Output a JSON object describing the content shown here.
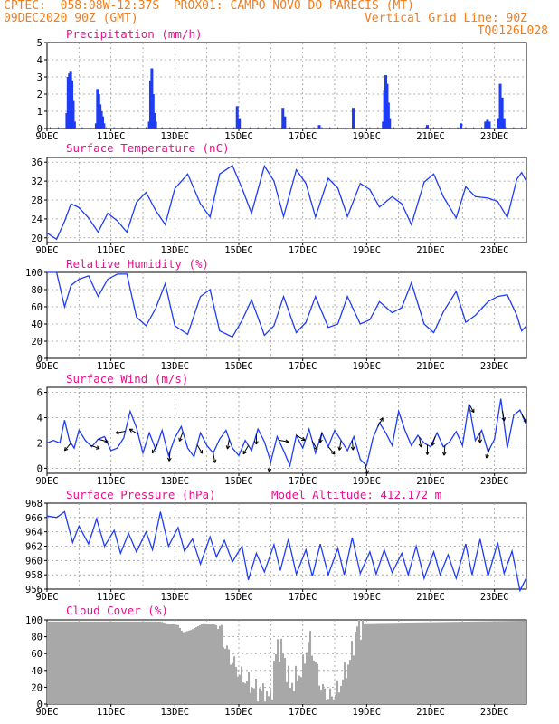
{
  "header": {
    "line1_left": "CPTEC:  058:08W-12:37S  PROX01: CAMPO NOVO DO PARECIS (MT)",
    "line2_left": "09DEC2020 90Z (GMT)",
    "line2_right": "Vertical Grid Line: 90Z",
    "line3_right": "TQ0126L028"
  },
  "x_axis": {
    "days": [
      9,
      24
    ],
    "tick_labels": [
      "9DEC",
      "11DEC",
      "13DEC",
      "15DEC",
      "17DEC",
      "19DEC",
      "21DEC",
      "23DEC"
    ],
    "tick_days": [
      9,
      11,
      13,
      15,
      17,
      19,
      21,
      23
    ]
  },
  "colors": {
    "line": "#1f3cf5",
    "bar": "#1f3cf5",
    "cloud": "#a8a8a8",
    "title": "#e8128c",
    "header": "#f07d1e",
    "wind_arrow": "#000000"
  },
  "chart_data": [
    {
      "type": "bar",
      "title": "Precipitation (mm/h)",
      "ylim": [
        0,
        5
      ],
      "yticks": [
        0,
        1,
        2,
        3,
        4,
        5
      ],
      "grid": true,
      "x_unit": "day of December 2020",
      "bars": [
        [
          9.62,
          0.9
        ],
        [
          9.66,
          3.0
        ],
        [
          9.7,
          3.2
        ],
        [
          9.74,
          3.3
        ],
        [
          9.78,
          2.8
        ],
        [
          9.82,
          1.6
        ],
        [
          9.86,
          0.4
        ],
        [
          10.54,
          0.3
        ],
        [
          10.58,
          2.3
        ],
        [
          10.62,
          2.0
        ],
        [
          10.66,
          1.4
        ],
        [
          10.7,
          1.0
        ],
        [
          10.74,
          0.7
        ],
        [
          10.78,
          0.3
        ],
        [
          12.2,
          0.4
        ],
        [
          12.24,
          2.8
        ],
        [
          12.28,
          3.5
        ],
        [
          12.32,
          2.0
        ],
        [
          12.36,
          0.9
        ],
        [
          12.4,
          0.4
        ],
        [
          14.95,
          1.3
        ],
        [
          15.02,
          0.6
        ],
        [
          16.38,
          1.2
        ],
        [
          16.44,
          0.7
        ],
        [
          17.52,
          0.2
        ],
        [
          18.58,
          1.2
        ],
        [
          19.52,
          0.4
        ],
        [
          19.56,
          2.2
        ],
        [
          19.6,
          3.1
        ],
        [
          19.64,
          2.6
        ],
        [
          19.68,
          1.5
        ],
        [
          19.72,
          0.6
        ],
        [
          20.9,
          0.2
        ],
        [
          21.95,
          0.3
        ],
        [
          22.72,
          0.4
        ],
        [
          22.78,
          0.5
        ],
        [
          22.84,
          0.4
        ],
        [
          23.12,
          0.6
        ],
        [
          23.18,
          2.6
        ],
        [
          23.24,
          1.8
        ],
        [
          23.3,
          0.6
        ]
      ]
    },
    {
      "type": "line",
      "title": "Surface Temperature (nC)",
      "ylim": [
        19,
        37
      ],
      "yticks": [
        20,
        24,
        28,
        32,
        36
      ],
      "grid": true,
      "x": [
        9.0,
        9.3,
        9.55,
        9.75,
        10.0,
        10.3,
        10.6,
        10.9,
        11.2,
        11.5,
        11.8,
        12.1,
        12.4,
        12.7,
        13.0,
        13.4,
        13.8,
        14.1,
        14.4,
        14.8,
        15.1,
        15.4,
        15.8,
        16.1,
        16.4,
        16.8,
        17.1,
        17.4,
        17.8,
        18.1,
        18.4,
        18.8,
        19.1,
        19.4,
        19.8,
        20.1,
        20.4,
        20.8,
        21.1,
        21.4,
        21.8,
        22.1,
        22.4,
        22.8,
        23.1,
        23.4,
        23.7,
        23.85,
        24.0
      ],
      "y": [
        21,
        19.7,
        23.5,
        27.2,
        26.4,
        24.2,
        21.2,
        25.2,
        23.6,
        21.2,
        27.5,
        29.6,
        25.8,
        22.8,
        30.4,
        33.5,
        27.2,
        24.4,
        33.5,
        35.3,
        30.5,
        25.2,
        35.2,
        32.0,
        24.5,
        34.4,
        31.5,
        24.4,
        32.6,
        30.5,
        24.5,
        31.5,
        30.2,
        26.5,
        28.7,
        27.2,
        22.8,
        31.8,
        33.5,
        28.7,
        24.2,
        30.8,
        28.7,
        28.4,
        27.7,
        24.3,
        32.4,
        33.8,
        31.9
      ]
    },
    {
      "type": "line",
      "title": "Relative Humidity (%)",
      "ylim": [
        0,
        100
      ],
      "yticks": [
        0,
        20,
        40,
        60,
        80,
        100
      ],
      "grid": true,
      "x": [
        9.0,
        9.3,
        9.55,
        9.75,
        10.0,
        10.3,
        10.6,
        10.9,
        11.2,
        11.5,
        11.8,
        12.1,
        12.4,
        12.7,
        13.0,
        13.4,
        13.8,
        14.1,
        14.4,
        14.8,
        15.1,
        15.4,
        15.8,
        16.1,
        16.4,
        16.8,
        17.1,
        17.4,
        17.8,
        18.1,
        18.4,
        18.8,
        19.1,
        19.4,
        19.8,
        20.1,
        20.4,
        20.8,
        21.1,
        21.4,
        21.8,
        22.1,
        22.4,
        22.8,
        23.1,
        23.4,
        23.7,
        23.85,
        24.0
      ],
      "y": [
        100,
        100,
        60,
        85,
        92,
        96,
        72,
        92,
        98,
        98,
        48,
        38,
        58,
        87,
        38,
        28,
        72,
        80,
        32,
        25,
        44,
        68,
        27,
        38,
        72,
        30,
        42,
        72,
        36,
        40,
        72,
        40,
        45,
        66,
        53,
        59,
        88,
        40,
        30,
        54,
        78,
        42,
        50,
        66,
        72,
        74,
        50,
        32,
        38
      ]
    },
    {
      "type": "line",
      "title": "Surface Wind (m/s)",
      "ylim": [
        -0.4,
        6.4
      ],
      "yticks": [
        0,
        2,
        4,
        6
      ],
      "grid": true,
      "x": [
        9.0,
        9.2,
        9.4,
        9.55,
        9.7,
        9.85,
        10.0,
        10.2,
        10.4,
        10.6,
        10.8,
        11.0,
        11.2,
        11.4,
        11.6,
        11.8,
        12.0,
        12.2,
        12.4,
        12.6,
        12.8,
        13.0,
        13.2,
        13.4,
        13.6,
        13.8,
        14.0,
        14.2,
        14.4,
        14.6,
        14.8,
        15.0,
        15.2,
        15.4,
        15.6,
        15.8,
        16.0,
        16.2,
        16.4,
        16.6,
        16.8,
        17.0,
        17.2,
        17.4,
        17.6,
        17.8,
        18.0,
        18.2,
        18.4,
        18.6,
        18.8,
        19.0,
        19.2,
        19.4,
        19.6,
        19.8,
        20.0,
        20.2,
        20.4,
        20.6,
        20.8,
        21.0,
        21.2,
        21.4,
        21.6,
        21.8,
        22.0,
        22.2,
        22.4,
        22.6,
        22.8,
        23.0,
        23.2,
        23.4,
        23.6,
        23.8,
        24.0
      ],
      "y": [
        2.0,
        2.2,
        2.0,
        3.8,
        2.2,
        1.6,
        3.0,
        2.2,
        1.7,
        2.3,
        2.5,
        1.4,
        1.6,
        2.4,
        4.5,
        3.2,
        1.2,
        2.8,
        1.5,
        3.0,
        1.0,
        2.4,
        3.3,
        1.6,
        0.9,
        2.8,
        1.8,
        1.2,
        2.3,
        3.0,
        1.6,
        1.0,
        2.2,
        1.4,
        3.1,
        2.1,
        0.5,
        2.5,
        1.4,
        0.2,
        2.6,
        1.6,
        3.1,
        1.2,
        2.8,
        1.7,
        3.0,
        2.2,
        1.4,
        2.5,
        0.7,
        0.2,
        2.4,
        3.6,
        2.8,
        1.8,
        4.5,
        3.0,
        1.8,
        2.6,
        2.0,
        1.7,
        2.8,
        1.7,
        2.1,
        2.9,
        1.8,
        5.1,
        2.2,
        3.0,
        1.3,
        2.3,
        5.5,
        1.6,
        4.2,
        4.6,
        3.4
      ],
      "arrows": [
        [
          9.75,
          -130
        ],
        [
          10.35,
          -20
        ],
        [
          10.6,
          -15
        ],
        [
          11.45,
          -170
        ],
        [
          11.85,
          150
        ],
        [
          12.45,
          -120
        ],
        [
          12.85,
          -95
        ],
        [
          13.25,
          -110
        ],
        [
          13.7,
          -60
        ],
        [
          14.2,
          -80
        ],
        [
          14.7,
          -100
        ],
        [
          15.3,
          -120
        ],
        [
          15.55,
          -90
        ],
        [
          16.0,
          -100
        ],
        [
          16.25,
          -10
        ],
        [
          16.8,
          -30
        ],
        [
          17.3,
          -60
        ],
        [
          17.6,
          -100
        ],
        [
          17.8,
          -50
        ],
        [
          18.2,
          -100
        ],
        [
          18.55,
          -85
        ],
        [
          18.95,
          -75
        ],
        [
          19.35,
          60
        ],
        [
          20.65,
          -80
        ],
        [
          20.9,
          -90
        ],
        [
          21.15,
          -110
        ],
        [
          21.45,
          -95
        ],
        [
          22.2,
          -60
        ],
        [
          22.55,
          -90
        ],
        [
          22.85,
          -110
        ],
        [
          23.25,
          -80
        ],
        [
          23.85,
          -60
        ]
      ]
    },
    {
      "type": "line",
      "title": "Surface Pressure (hPa)",
      "subtitle": "Model Altitude: 412.172  m",
      "ylim": [
        956,
        968
      ],
      "yticks": [
        956,
        958,
        960,
        962,
        964,
        966,
        968
      ],
      "grid": true,
      "x": [
        9.0,
        9.3,
        9.55,
        9.8,
        10.0,
        10.3,
        10.55,
        10.8,
        11.1,
        11.3,
        11.55,
        11.8,
        12.1,
        12.3,
        12.55,
        12.8,
        13.1,
        13.3,
        13.55,
        13.8,
        14.1,
        14.3,
        14.55,
        14.8,
        15.1,
        15.3,
        15.55,
        15.8,
        16.1,
        16.3,
        16.55,
        16.8,
        17.1,
        17.3,
        17.55,
        17.8,
        18.1,
        18.3,
        18.55,
        18.8,
        19.1,
        19.3,
        19.55,
        19.8,
        20.1,
        20.3,
        20.55,
        20.8,
        21.1,
        21.3,
        21.55,
        21.8,
        22.1,
        22.3,
        22.55,
        22.8,
        23.1,
        23.3,
        23.55,
        23.8,
        24.0
      ],
      "y": [
        966.2,
        966.0,
        966.8,
        962.5,
        964.8,
        962.3,
        965.8,
        962.0,
        964.2,
        961.0,
        963.8,
        961.2,
        964.0,
        961.5,
        966.8,
        962.0,
        964.6,
        961.3,
        963.0,
        959.5,
        963.3,
        960.5,
        962.8,
        959.8,
        962.0,
        957.3,
        961.0,
        958.4,
        962.2,
        958.6,
        963.0,
        958.1,
        961.5,
        957.8,
        962.3,
        958.0,
        961.7,
        958.0,
        963.2,
        958.2,
        961.2,
        958.1,
        961.5,
        958.3,
        961.0,
        958.0,
        962.0,
        957.5,
        961.2,
        958.0,
        960.8,
        957.5,
        962.3,
        958.0,
        963.0,
        957.8,
        962.5,
        958.2,
        961.3,
        955.8,
        957.6
      ]
    },
    {
      "type": "bar",
      "title": "Cloud Cover (%)",
      "ylim": [
        0,
        100
      ],
      "yticks": [
        0,
        20,
        40,
        60,
        80,
        100
      ],
      "grid": true,
      "profile": [
        [
          9.0,
          98
        ],
        [
          12.55,
          98
        ],
        [
          12.85,
          95
        ],
        [
          13.1,
          94
        ],
        [
          13.25,
          85
        ],
        [
          13.5,
          88
        ],
        [
          13.9,
          96
        ],
        [
          14.2,
          95
        ],
        [
          14.4,
          92
        ],
        [
          14.6,
          66
        ],
        [
          14.85,
          48
        ],
        [
          15.1,
          32
        ],
        [
          15.25,
          28
        ],
        [
          15.5,
          18
        ],
        [
          15.7,
          16
        ],
        [
          15.85,
          10
        ],
        [
          16.0,
          8
        ],
        [
          16.2,
          72
        ],
        [
          16.4,
          60
        ],
        [
          16.6,
          22
        ],
        [
          16.8,
          30
        ],
        [
          17.0,
          42
        ],
        [
          17.2,
          80
        ],
        [
          17.4,
          48
        ],
        [
          17.6,
          18
        ],
        [
          17.85,
          8
        ],
        [
          18.1,
          16
        ],
        [
          18.35,
          40
        ],
        [
          18.5,
          55
        ],
        [
          18.7,
          92
        ],
        [
          19.0,
          96
        ],
        [
          24.0,
          99
        ]
      ]
    }
  ]
}
